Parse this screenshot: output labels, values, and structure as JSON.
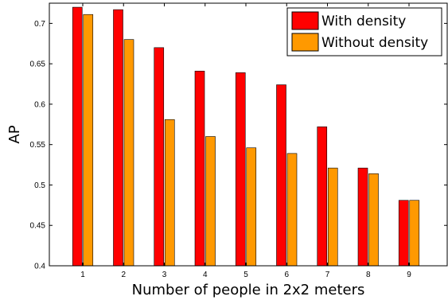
{
  "chart_data": {
    "type": "bar",
    "title": "",
    "xlabel": "Number of people in 2x2 meters",
    "ylabel": "AP",
    "categories": [
      "1",
      "2",
      "3",
      "4",
      "5",
      "6",
      "7",
      "8",
      "9"
    ],
    "ylim": [
      0.4,
      0.725
    ],
    "yticks": [
      "0.4",
      "0.45",
      "0.5",
      "0.55",
      "0.6",
      "0.65",
      "0.7"
    ],
    "grid": false,
    "legend_position": "top-right",
    "series": [
      {
        "name": "With density",
        "color": "#ff0000",
        "values": [
          0.72,
          0.717,
          0.67,
          0.641,
          0.639,
          0.624,
          0.572,
          0.521,
          0.481
        ]
      },
      {
        "name": "Without density",
        "color": "#ff9900",
        "values": [
          0.711,
          0.68,
          0.581,
          0.56,
          0.546,
          0.539,
          0.521,
          0.514,
          0.481
        ]
      }
    ]
  }
}
